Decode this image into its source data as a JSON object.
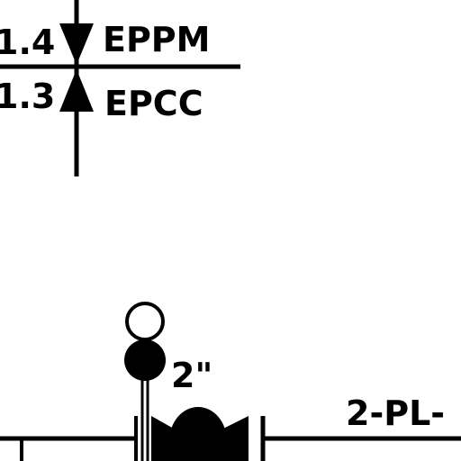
{
  "drawing": {
    "line_color": "#000000",
    "background": "#ffffff"
  },
  "labels": {
    "upper_value": "1.4",
    "lower_value": "1.3",
    "upper_tag": "EPPM",
    "lower_tag": "EPCC",
    "size": "2\"",
    "line_id": "2-PL-"
  }
}
